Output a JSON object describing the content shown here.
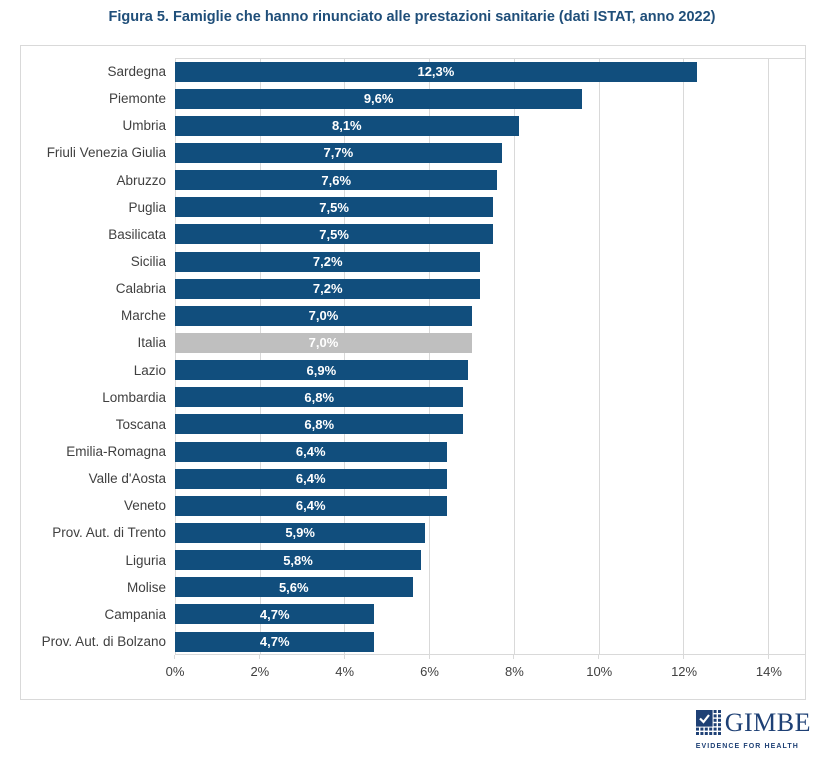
{
  "page": {
    "title": "Figura 5. Famiglie che hanno rinunciato alle prestazioni sanitarie (dati ISTAT, anno 2022)",
    "title_color": "#1F4E79"
  },
  "chart_data": {
    "type": "bar",
    "orientation": "horizontal",
    "categories": [
      "Sardegna",
      "Piemonte",
      "Umbria",
      "Friuli Venezia Giulia",
      "Abruzzo",
      "Puglia",
      "Basilicata",
      "Sicilia",
      "Calabria",
      "Marche",
      "Italia",
      "Lazio",
      "Lombardia",
      "Toscana",
      "Emilia-Romagna",
      "Valle d'Aosta",
      "Veneto",
      "Prov. Aut. di Trento",
      "Liguria",
      "Molise",
      "Campania",
      "Prov. Aut. di Bolzano"
    ],
    "values": [
      12.3,
      9.6,
      8.1,
      7.7,
      7.6,
      7.5,
      7.5,
      7.2,
      7.2,
      7.0,
      7.0,
      6.9,
      6.8,
      6.8,
      6.4,
      6.4,
      6.4,
      5.9,
      5.8,
      5.6,
      4.7,
      4.7
    ],
    "value_labels": [
      "12,3%",
      "9,6%",
      "8,1%",
      "7,7%",
      "7,6%",
      "7,5%",
      "7,5%",
      "7,2%",
      "7,2%",
      "7,0%",
      "7,0%",
      "6,9%",
      "6,8%",
      "6,8%",
      "6,4%",
      "6,4%",
      "6,4%",
      "5,9%",
      "5,8%",
      "5,6%",
      "4,7%",
      "4,7%"
    ],
    "highlight_category": "Italia",
    "bar_color": "#114E7D",
    "highlight_bar_color": "#BFBFBF",
    "value_label_color": "#FFFFFF",
    "x_ticks": [
      "0%",
      "2%",
      "4%",
      "6%",
      "8%",
      "10%",
      "12%",
      "14%"
    ],
    "x_tick_values": [
      0,
      2,
      4,
      6,
      8,
      10,
      12,
      14
    ],
    "x_axis_display_max": 14.85,
    "xlim": [
      0,
      14
    ],
    "grid": "vertical",
    "gridline_color": "#D9D9D9",
    "legend": "none",
    "title": "Figura 5. Famiglie che hanno rinunciato alle prestazioni sanitarie (dati ISTAT, anno 2022)"
  },
  "footer": {
    "brand": "GIMBE",
    "tagline": "EVIDENCE FOR HEALTH",
    "brand_color": "#1E4075"
  }
}
